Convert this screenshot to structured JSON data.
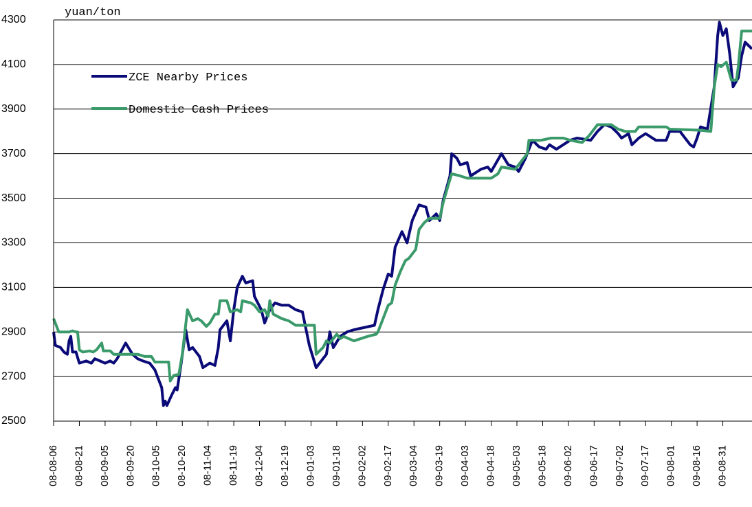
{
  "chart_data": {
    "type": "line",
    "y_label": "yuan/ton",
    "ylim": [
      2500,
      4300
    ],
    "yticks": [
      2500,
      2700,
      2900,
      3100,
      3300,
      3500,
      3700,
      3900,
      4100,
      4300
    ],
    "xlim": [
      "08-08-06",
      "09-09-17"
    ],
    "xticks": [
      "08-08-06",
      "08-08-21",
      "08-09-05",
      "08-09-20",
      "08-10-05",
      "08-10-20",
      "08-11-04",
      "08-11-19",
      "08-12-04",
      "08-12-19",
      "09-01-03",
      "09-01-18",
      "09-02-02",
      "09-02-17",
      "09-03-04",
      "09-03-19",
      "09-04-03",
      "09-04-18",
      "09-05-03",
      "09-05-18",
      "09-06-02",
      "09-06-17",
      "09-07-02",
      "09-07-17",
      "09-08-01",
      "09-08-16",
      "09-08-31"
    ],
    "grid": true,
    "series": [
      {
        "name": "ZCE Nearby Prices",
        "color": "#0a0a78",
        "x": [
          "08-08-06",
          "08-08-07",
          "08-08-10",
          "08-08-12",
          "08-08-14",
          "08-08-15",
          "08-08-16",
          "08-08-17",
          "08-08-19",
          "08-08-21",
          "08-08-25",
          "08-08-28",
          "08-08-30",
          "08-09-02",
          "08-09-05",
          "08-09-08",
          "08-09-10",
          "08-09-12",
          "08-09-17",
          "08-09-21",
          "08-09-24",
          "08-09-27",
          "08-10-01",
          "08-10-04",
          "08-10-06",
          "08-10-08",
          "08-10-09",
          "08-10-10",
          "08-10-11",
          "08-10-14",
          "08-10-16",
          "08-10-17",
          "08-10-19",
          "08-10-22",
          "08-10-24",
          "08-10-26",
          "08-10-30",
          "08-11-01",
          "08-11-05",
          "08-11-08",
          "08-11-10",
          "08-11-11",
          "08-11-15",
          "08-11-17",
          "08-11-19",
          "08-11-21",
          "08-11-24",
          "08-11-26",
          "08-11-30",
          "08-12-01",
          "08-12-05",
          "08-12-07",
          "08-12-10",
          "08-12-13",
          "08-12-17",
          "08-12-21",
          "08-12-25",
          "08-12-29",
          "09-01-02",
          "09-01-06",
          "09-01-12",
          "09-01-14",
          "09-01-16",
          "09-01-20",
          "09-01-24",
          "09-01-28",
          "09-02-09",
          "09-02-11",
          "09-02-14",
          "09-02-17",
          "09-02-19",
          "09-02-21",
          "09-02-25",
          "09-02-28",
          "09-03-03",
          "09-03-07",
          "09-03-11",
          "09-03-13",
          "09-03-17",
          "09-03-19",
          "09-03-21",
          "09-03-25",
          "09-03-26",
          "09-03-29",
          "09-03-31",
          "09-04-04",
          "09-04-06",
          "09-04-12",
          "09-04-16",
          "09-04-18",
          "09-04-24",
          "09-04-28",
          "09-05-02",
          "09-05-04",
          "09-05-08",
          "09-05-12",
          "09-05-16",
          "09-05-20",
          "09-05-22",
          "09-05-26",
          "09-05-30",
          "09-06-03",
          "09-06-07",
          "09-06-15",
          "09-06-19",
          "09-06-23",
          "09-06-27",
          "09-07-01",
          "09-07-03",
          "09-07-07",
          "09-07-09",
          "09-07-13",
          "09-07-17",
          "09-07-23",
          "09-07-29",
          "09-07-31",
          "09-08-06",
          "09-08-08",
          "09-08-12",
          "09-08-14",
          "09-08-16",
          "09-08-18",
          "09-08-22",
          "09-08-26",
          "09-08-28",
          "09-08-29",
          "09-08-31",
          "09-09-02",
          "09-09-04",
          "09-09-06",
          "09-09-09",
          "09-09-11",
          "09-09-13",
          "09-09-17"
        ],
        "values": [
          2900,
          2840,
          2830,
          2810,
          2800,
          2860,
          2880,
          2810,
          2810,
          2760,
          2770,
          2760,
          2780,
          2770,
          2760,
          2770,
          2760,
          2780,
          2850,
          2800,
          2780,
          2770,
          2760,
          2730,
          2690,
          2650,
          2570,
          2590,
          2570,
          2620,
          2650,
          2640,
          2740,
          2910,
          2820,
          2830,
          2790,
          2740,
          2760,
          2750,
          2830,
          2910,
          2950,
          2860,
          3000,
          3100,
          3150,
          3120,
          3130,
          3060,
          3000,
          2940,
          3000,
          3030,
          3020,
          3020,
          3000,
          2990,
          2840,
          2740,
          2800,
          2900,
          2830,
          2880,
          2900,
          2910,
          2930,
          3000,
          3090,
          3160,
          3150,
          3280,
          3350,
          3300,
          3400,
          3470,
          3460,
          3400,
          3430,
          3400,
          3490,
          3600,
          3700,
          3680,
          3650,
          3660,
          3600,
          3630,
          3640,
          3620,
          3700,
          3650,
          3640,
          3620,
          3680,
          3760,
          3730,
          3720,
          3740,
          3720,
          3740,
          3760,
          3770,
          3760,
          3800,
          3830,
          3820,
          3790,
          3770,
          3790,
          3740,
          3770,
          3790,
          3760,
          3760,
          3800,
          3800,
          3780,
          3740,
          3730,
          3770,
          3820,
          3810,
          4000,
          4230,
          4290,
          4230,
          4260,
          4150,
          4000,
          4040,
          4140,
          4200,
          4170
        ]
      },
      {
        "name": "Domestic Cash Prices",
        "color": "#3a9a6a",
        "x": [
          "08-08-06",
          "08-08-09",
          "08-08-15",
          "08-08-17",
          "08-08-19",
          "08-08-20",
          "08-08-21",
          "08-08-23",
          "08-08-27",
          "08-08-29",
          "08-08-31",
          "08-09-03",
          "08-09-04",
          "08-09-08",
          "08-09-10",
          "08-09-24",
          "08-09-28",
          "08-10-02",
          "08-10-04",
          "08-10-12",
          "08-10-13",
          "08-10-15",
          "08-10-18",
          "08-10-20",
          "08-10-23",
          "08-10-26",
          "08-10-29",
          "08-10-31",
          "08-11-03",
          "08-11-05",
          "08-11-08",
          "08-11-10",
          "08-11-11",
          "08-11-15",
          "08-11-17",
          "08-11-21",
          "08-11-23",
          "08-11-24",
          "08-11-29",
          "08-12-01",
          "08-12-04",
          "08-12-07",
          "08-12-09",
          "08-12-10",
          "08-12-12",
          "08-12-17",
          "08-12-21",
          "08-12-25",
          "09-01-05",
          "09-01-06",
          "09-01-10",
          "09-01-12",
          "09-01-14",
          "09-01-18",
          "09-01-20",
          "09-01-22",
          "09-01-28",
          "09-02-05",
          "09-02-10",
          "09-02-11",
          "09-02-14",
          "09-02-17",
          "09-02-19",
          "09-02-21",
          "09-02-24",
          "09-02-27",
          "09-03-01",
          "09-03-05",
          "09-03-07",
          "09-03-10",
          "09-03-13",
          "09-03-19",
          "09-03-21",
          "09-03-24",
          "09-03-26",
          "09-03-31",
          "09-04-04",
          "09-04-18",
          "09-04-22",
          "09-04-24",
          "09-05-02",
          "09-05-04",
          "09-05-09",
          "09-05-10",
          "09-05-17",
          "09-05-23",
          "09-05-30",
          "09-06-03",
          "09-06-10",
          "09-06-14",
          "09-06-16",
          "09-06-19",
          "09-06-27",
          "09-07-01",
          "09-07-05",
          "09-07-11",
          "09-07-13",
          "09-07-29",
          "09-07-31",
          "09-08-18",
          "09-08-24",
          "09-08-26",
          "09-08-28",
          "09-08-30",
          "09-09-02",
          "09-09-05",
          "09-09-08",
          "09-09-09",
          "09-09-11",
          "09-09-17"
        ],
        "values": [
          2960,
          2900,
          2900,
          2905,
          2900,
          2900,
          2820,
          2810,
          2815,
          2810,
          2820,
          2850,
          2815,
          2815,
          2800,
          2800,
          2790,
          2790,
          2765,
          2765,
          2680,
          2705,
          2710,
          2800,
          3000,
          2950,
          2960,
          2950,
          2925,
          2940,
          2980,
          2980,
          3040,
          3040,
          2990,
          3000,
          2990,
          3040,
          3030,
          3020,
          2990,
          3000,
          2970,
          3040,
          2980,
          2960,
          2950,
          2930,
          2930,
          2800,
          2830,
          2860,
          2850,
          2890,
          2870,
          2880,
          2860,
          2880,
          2890,
          2900,
          2960,
          3020,
          3030,
          3110,
          3170,
          3220,
          3230,
          3270,
          3360,
          3390,
          3410,
          3410,
          3480,
          3560,
          3610,
          3600,
          3590,
          3590,
          3610,
          3640,
          3630,
          3650,
          3700,
          3760,
          3760,
          3770,
          3770,
          3760,
          3750,
          3780,
          3800,
          3830,
          3830,
          3810,
          3800,
          3800,
          3820,
          3820,
          3810,
          3805,
          3800,
          4000,
          4100,
          4090,
          4110,
          4030,
          4030,
          4090,
          4250,
          4250
        ]
      }
    ]
  }
}
